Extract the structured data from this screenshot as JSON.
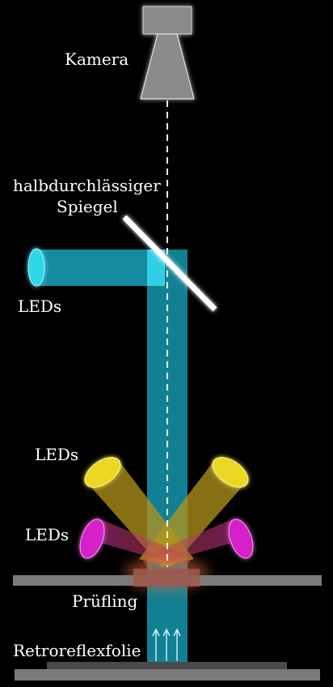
{
  "labels": {
    "camera": "Kamera",
    "mirror_line1": "halbdurchlässiger",
    "mirror_line2": "Spiegel",
    "leds_top": "LEDs",
    "leds_middle": "LEDs",
    "leds_lower": "LEDs",
    "specimen": "Prüfling",
    "retro_foil": "Retroreflexfolie"
  },
  "colors": {
    "background": "#000000",
    "camera_gray": "#8c8c8c",
    "cyan_beam": "#19b7d2",
    "yellow_led": "#e6d21e",
    "magenta_led": "#d21ec8",
    "plate_gray": "#7a7a7a",
    "specimen_glow": "#d06040",
    "mirror": "#ffffff"
  }
}
